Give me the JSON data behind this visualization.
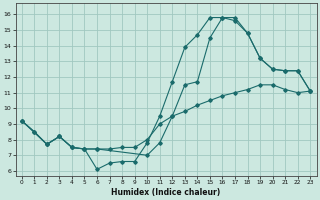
{
  "bg_color": "#cce8e0",
  "grid_color": "#a0c8c0",
  "line_color": "#1a6b6b",
  "xlim": [
    -0.5,
    23.5
  ],
  "ylim": [
    5.7,
    16.7
  ],
  "xticks": [
    0,
    1,
    2,
    3,
    4,
    5,
    6,
    7,
    8,
    9,
    10,
    11,
    12,
    13,
    14,
    15,
    16,
    17,
    18,
    19,
    20,
    21,
    22,
    23
  ],
  "yticks": [
    6,
    7,
    8,
    9,
    10,
    11,
    12,
    13,
    14,
    15,
    16
  ],
  "xlabel": "Humidex (Indice chaleur)",
  "line1_x": [
    0,
    1,
    2,
    3,
    4,
    5,
    6,
    7,
    8,
    9,
    10,
    11,
    12,
    13,
    14,
    15,
    16,
    17,
    18,
    19,
    20,
    21,
    22,
    23
  ],
  "line1_y": [
    9.2,
    8.5,
    7.7,
    8.2,
    7.5,
    7.4,
    6.1,
    6.5,
    6.6,
    6.6,
    7.8,
    9.5,
    11.7,
    13.9,
    14.7,
    15.8,
    15.8,
    15.6,
    14.8,
    13.2,
    12.5,
    12.4,
    12.4,
    11.1
  ],
  "line2_x": [
    0,
    1,
    2,
    3,
    4,
    5,
    6,
    7,
    8,
    9,
    10,
    11,
    12,
    13,
    14,
    15,
    16,
    17,
    18,
    19,
    20,
    21,
    22,
    23
  ],
  "line2_y": [
    9.2,
    8.5,
    7.7,
    8.2,
    7.5,
    7.4,
    7.4,
    7.4,
    7.5,
    7.5,
    8.0,
    9.0,
    9.5,
    9.8,
    10.2,
    10.5,
    10.8,
    11.0,
    11.2,
    11.5,
    11.5,
    11.2,
    11.0,
    11.1
  ],
  "line3_x": [
    0,
    2,
    3,
    4,
    5,
    6,
    10,
    11,
    12,
    13,
    14,
    15,
    16,
    17,
    18,
    19,
    20,
    21,
    22,
    23
  ],
  "line3_y": [
    9.2,
    7.7,
    8.2,
    7.5,
    7.4,
    7.4,
    7.0,
    7.8,
    9.5,
    11.5,
    11.7,
    14.5,
    15.8,
    15.8,
    14.8,
    13.2,
    12.5,
    12.4,
    12.4,
    11.1
  ]
}
